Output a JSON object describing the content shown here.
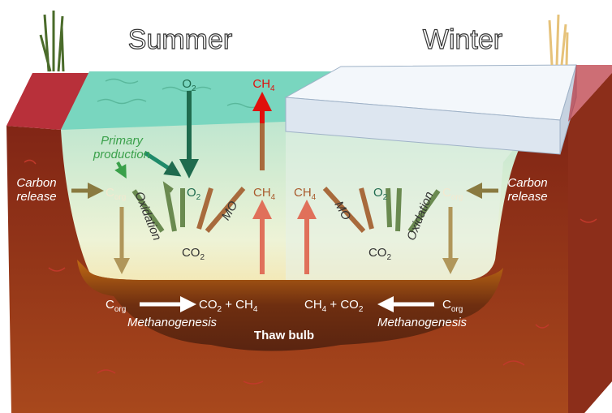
{
  "titles": {
    "summer": "Summer",
    "winter": "Winter"
  },
  "summer": {
    "o2_surface": [
      "O",
      "2"
    ],
    "ch4_surface": [
      "CH",
      "4"
    ],
    "primary_production": [
      "Primary",
      "production"
    ],
    "carbon_release": [
      "Carbon",
      "release"
    ],
    "corg": [
      "C",
      "org"
    ],
    "o2": [
      "O",
      "2"
    ],
    "ch4": [
      "CH",
      "4"
    ],
    "oxidation": "Oxidation",
    "mo": "MO",
    "co2": [
      "CO",
      "2"
    ],
    "bottom_corg": [
      "C",
      "org"
    ],
    "bottom_products": [
      "CO",
      "2",
      " + CH",
      "4"
    ],
    "methanogenesis": "Methanogenesis"
  },
  "winter": {
    "ch4": [
      "CH",
      "4"
    ],
    "o2": [
      "O",
      "2"
    ],
    "corg": [
      "C",
      "org"
    ],
    "mo": "MO",
    "oxidation": "Oxidation",
    "co2": [
      "CO",
      "2"
    ],
    "carbon_release": [
      "Carbon",
      "release"
    ],
    "bottom_products": [
      "CH",
      "4",
      " + CO",
      "2"
    ],
    "bottom_corg": [
      "C",
      "org"
    ],
    "methanogenesis": "Methanogenesis"
  },
  "thaw_bulb": "Thaw bulb"
}
